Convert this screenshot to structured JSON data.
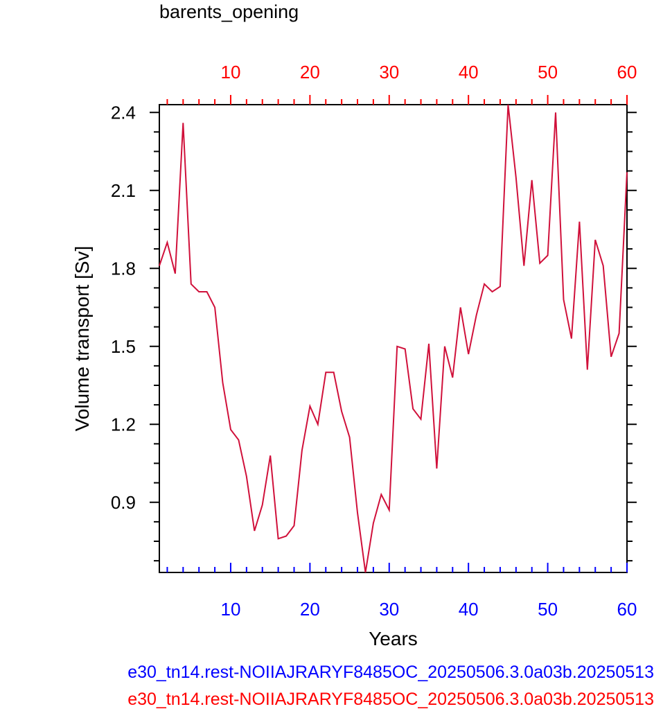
{
  "chart_data": {
    "type": "line",
    "title": "barents_opening",
    "xlabel": "Years",
    "ylabel": "Volume transport [Sv]",
    "xlim": [
      1,
      60
    ],
    "ylim": [
      0.63,
      2.43
    ],
    "x_ticks": [
      10,
      20,
      30,
      40,
      50,
      60
    ],
    "y_ticks": [
      0.9,
      1.2,
      1.5,
      1.8,
      2.1,
      2.4
    ],
    "y_tick_labels": [
      "0.9",
      "1.2",
      "1.5",
      "1.8",
      "2.1",
      "2.4"
    ],
    "bottom_axis_color": "#0000ff",
    "top_axis_color": "#ff0000",
    "legend": [
      {
        "text": "e30_tn14.rest-NOIIAJRARYF8485OC_20250506.3.0a03b.20250513",
        "color": "#0000ff"
      },
      {
        "text": "e30_tn14.rest-NOIIAJRARYF8485OC_20250506.3.0a03b.20250513",
        "color": "#ff0000"
      }
    ],
    "series": [
      {
        "color": "#d0103a",
        "x": [
          1,
          2,
          3,
          4,
          5,
          6,
          7,
          8,
          9,
          10,
          11,
          12,
          13,
          14,
          15,
          16,
          17,
          18,
          19,
          20,
          21,
          22,
          23,
          24,
          25,
          26,
          27,
          28,
          29,
          30,
          31,
          32,
          33,
          34,
          35,
          36,
          37,
          38,
          39,
          40,
          41,
          42,
          43,
          44,
          45,
          46,
          47,
          48,
          49,
          50,
          51,
          52,
          53,
          54,
          55,
          56,
          57,
          58,
          59,
          60
        ],
        "values": [
          1.81,
          1.9,
          1.78,
          2.36,
          1.74,
          1.71,
          1.71,
          1.65,
          1.36,
          1.18,
          1.14,
          1.0,
          0.79,
          0.89,
          1.08,
          0.76,
          0.77,
          0.81,
          1.1,
          1.27,
          1.2,
          1.4,
          1.4,
          1.25,
          1.15,
          0.86,
          0.63,
          0.82,
          0.93,
          0.87,
          1.5,
          1.49,
          1.26,
          1.22,
          1.51,
          1.03,
          1.5,
          1.38,
          1.65,
          1.47,
          1.62,
          1.74,
          1.71,
          1.73,
          2.43,
          2.15,
          1.81,
          2.14,
          1.82,
          1.85,
          2.4,
          1.68,
          1.53,
          1.98,
          1.41,
          1.91,
          1.81,
          1.46,
          1.55,
          2.17
        ]
      }
    ]
  }
}
